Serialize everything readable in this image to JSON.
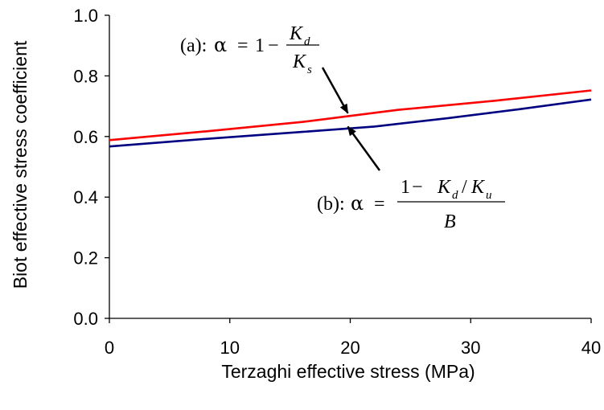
{
  "chart_data": {
    "type": "line",
    "xlabel": "Terzaghi effective stress (MPa)",
    "ylabel": "Biot effective stress coefficient",
    "xlim": [
      0,
      40
    ],
    "ylim": [
      0,
      1.0
    ],
    "xticks": [
      "0",
      "10",
      "20",
      "30",
      "40"
    ],
    "yticks": [
      "0.0",
      "0.2",
      "0.4",
      "0.6",
      "0.8",
      "1.0"
    ],
    "xtick_values": [
      0,
      10,
      20,
      30,
      40
    ],
    "ytick_values": [
      0,
      0.2,
      0.4,
      0.6,
      0.8,
      1.0
    ],
    "grid": false,
    "series": [
      {
        "color": "#ff0000",
        "x": [
          0,
          8,
          16,
          24,
          32,
          40
        ],
        "y": [
          0.588,
          0.617,
          0.648,
          0.688,
          0.718,
          0.752
        ]
      },
      {
        "color": "#000080",
        "x": [
          0,
          8,
          16,
          22,
          28,
          34,
          40
        ],
        "y": [
          0.567,
          0.592,
          0.615,
          0.633,
          0.66,
          0.69,
          0.722
        ]
      }
    ],
    "annotations": [
      {
        "prefix": "(a):",
        "alpha": "α",
        "eq": "=",
        "one": "1",
        "minus": "−",
        "num_var": "K",
        "num_sub": "d",
        "den_var": "K",
        "den_sub": "s",
        "arrow_to": [
          19.8,
          0.672
        ]
      },
      {
        "prefix": "(b):",
        "alpha": "α",
        "eq": "=",
        "one": "1",
        "minus": "−",
        "k1": "K",
        "k1_sub": "d",
        "slash": "/",
        "k2": "K",
        "k2_sub": "u",
        "den": "B",
        "arrow_to": [
          19.8,
          0.638
        ]
      }
    ]
  }
}
